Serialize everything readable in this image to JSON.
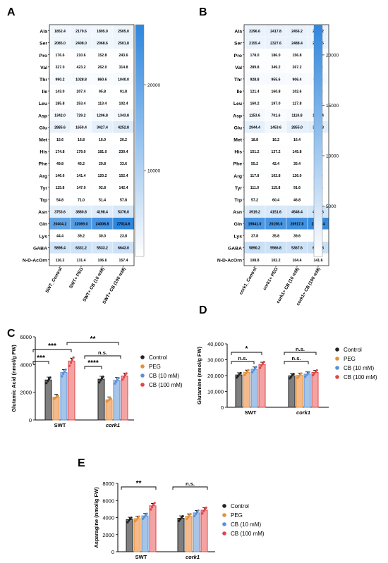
{
  "panels": [
    "A",
    "B",
    "C",
    "D",
    "E"
  ],
  "chart_data": [
    {
      "id": "A",
      "type": "heatmap",
      "rows": [
        "Ala",
        "Ser",
        "Pro",
        "Val",
        "Thr",
        "Ile",
        "Leu",
        "Asp",
        "Glu",
        "Met",
        "His",
        "Phe",
        "Arg",
        "Tyr",
        "Trp",
        "Asn",
        "Gln",
        "Lys",
        "GABA",
        "N-D-AcOrn"
      ],
      "columns": [
        "SWT_Control",
        "SWT+ PEG",
        "SWT+ CB (10 mM)",
        "SWT+ CB (100 mM)"
      ],
      "values": [
        [
          1852.4,
          2179.6,
          1895.0,
          2505.0
        ],
        [
          2085.0,
          2408.0,
          2068.6,
          2501.8
        ],
        [
          176.6,
          210.6,
          152.8,
          243.6
        ],
        [
          327.0,
          423.2,
          262.0,
          314.8
        ],
        [
          990.2,
          1028.8,
          860.6,
          1040.0
        ],
        [
          143.0,
          207.4,
          95.8,
          91.8
        ],
        [
          185.8,
          253.4,
          113.4,
          102.4
        ],
        [
          1342.0,
          729.2,
          1206.8,
          1343.8
        ],
        [
          2885.6,
          1650.4,
          3427.4,
          4252.8
        ],
        [
          15.6,
          16.8,
          16.0,
          20.2
        ],
        [
          174.8,
          179.0,
          181.0,
          230.4
        ],
        [
          49.8,
          45.2,
          29.8,
          33.6
        ],
        [
          146.6,
          141.4,
          120.2,
          152.4
        ],
        [
          115.8,
          147.0,
          92.8,
          142.4
        ],
        [
          54.8,
          71.0,
          51.4,
          57.8
        ],
        [
          3753.6,
          3880.8,
          4198.4,
          5376.0
        ],
        [
          20404.2,
          22069.0,
          24008.8,
          27014.6
        ],
        [
          44.4,
          39.2,
          30.0,
          23.8
        ],
        [
          5898.4,
          6331.2,
          5533.2,
          6643.0
        ],
        [
          116.2,
          131.4,
          106.6,
          157.4
        ]
      ],
      "colorbar": {
        "min": 0,
        "max": 27014.6,
        "ticks": [
          10000,
          20000
        ]
      }
    },
    {
      "id": "B",
      "type": "heatmap",
      "rows": [
        "Ala",
        "Ser",
        "Pro",
        "Val",
        "Thr",
        "Ile",
        "Leu",
        "Asp",
        "Glu",
        "Met",
        "His",
        "Phe",
        "Arg",
        "Tyr",
        "Trp",
        "Asn",
        "Gln",
        "Lys",
        "GABA",
        "N-D-AcOrn"
      ],
      "columns": [
        "cork1_Control",
        "cork1+ PEG",
        "cork1+ CB (10 mM)",
        "cork1+ CB (100 mM)"
      ],
      "values": [
        [
          2296.6,
          2417.8,
          2456.2,
          2422.2
        ],
        [
          2155.4,
          2327.6,
          2488.4,
          2356.6
        ],
        [
          178.0,
          186.0,
          156.8,
          235.0
        ],
        [
          289.8,
          349.2,
          267.2,
          334.8
        ],
        [
          928.8,
          955.6,
          906.4,
          989.4
        ],
        [
          121.4,
          160.8,
          102.6,
          120.2
        ],
        [
          160.2,
          197.0,
          127.8,
          149.0
        ],
        [
          1153.6,
          701.6,
          1110.8,
          1084.4
        ],
        [
          2944.4,
          1453.6,
          2855.0,
          3165.8
        ],
        [
          18.8,
          16.2,
          16.4,
          18.8
        ],
        [
          151.2,
          137.2,
          145.8,
          170.8
        ],
        [
          55.2,
          42.4,
          35.4,
          41.4
        ],
        [
          117.8,
          102.8,
          126.0,
          122.6
        ],
        [
          111.0,
          115.8,
          91.6,
          143.6
        ],
        [
          57.2,
          60.4,
          46.8,
          51.2
        ],
        [
          3919.2,
          4151.6,
          4546.4,
          4862.6
        ],
        [
          19841.0,
          20156.0,
          20917.8,
          21988.4
        ],
        [
          37.8,
          35.8,
          39.6,
          30.8
        ],
        [
          5890.2,
          5566.8,
          5367.6,
          6087.8
        ],
        [
          108.8,
          102.2,
          104.4,
          141.6
        ]
      ],
      "colorbar": {
        "min": 0,
        "max": 23000,
        "ticks": [
          5000,
          10000,
          15000,
          20000
        ]
      }
    },
    {
      "id": "C",
      "type": "bar",
      "ylabel": "Glutamic Acid (nmol/g FW)",
      "categories": [
        "SWT",
        "cork1"
      ],
      "series": [
        {
          "name": "Control",
          "values": [
            2886,
            2944
          ]
        },
        {
          "name": "PEG",
          "values": [
            1650,
            1454
          ]
        },
        {
          "name": "CB (10 mM)",
          "values": [
            3427,
            2855
          ]
        },
        {
          "name": "CB (100 mM)",
          "values": [
            4253,
            3166
          ]
        }
      ],
      "ylim": [
        0,
        6000
      ],
      "yticks": [
        0,
        2000,
        4000,
        6000
      ],
      "yticklabels": [
        "0",
        "2000",
        "4000",
        "6000"
      ],
      "significance": [
        [
          "***",
          "n.s.",
          "****",
          "n.s.",
          "***",
          "**"
        ]
      ]
    },
    {
      "id": "D",
      "type": "bar",
      "ylabel": "Glutamine (nmol/g FW)",
      "categories": [
        "SWT",
        "cork1"
      ],
      "series": [
        {
          "name": "Control",
          "values": [
            20404,
            19841
          ]
        },
        {
          "name": "PEG",
          "values": [
            22069,
            20156
          ]
        },
        {
          "name": "CB (10 mM)",
          "values": [
            24009,
            20918
          ]
        },
        {
          "name": "CB (100 mM)",
          "values": [
            27015,
            21988
          ]
        }
      ],
      "ylim": [
        0,
        40000
      ],
      "yticks": [
        0,
        10000,
        20000,
        30000,
        40000
      ],
      "yticklabels": [
        "0",
        "10,000",
        "20,000",
        "30,000",
        "40,000"
      ]
    },
    {
      "id": "E",
      "type": "bar",
      "ylabel": "Asparagine (nmol/g FW)",
      "categories": [
        "SWT",
        "cork1"
      ],
      "series": [
        {
          "name": "Control",
          "values": [
            3754,
            3919
          ]
        },
        {
          "name": "PEG",
          "values": [
            3881,
            4152
          ]
        },
        {
          "name": "CB (10 mM)",
          "values": [
            4198,
            4546
          ]
        },
        {
          "name": "CB (100 mM)",
          "values": [
            5376,
            4863
          ]
        }
      ],
      "ylim": [
        0,
        8000
      ],
      "yticks": [
        0,
        2000,
        4000,
        6000,
        8000
      ],
      "yticklabels": [
        "0",
        "2000",
        "4000",
        "6000",
        "8000"
      ]
    }
  ],
  "colors": {
    "Control": "#7f7f7f",
    "PEG": "#f5b98a",
    "CB (10 mM)": "#a6c4e8",
    "CB (100 mM)": "#f4a3a3",
    "Control_edge": "#222222",
    "PEG_edge": "#e69138",
    "CB (10 mM)_edge": "#5b8fd6",
    "CB (100 mM)_edge": "#e0454a",
    "heat_low": "#ffffff",
    "heat_high": "#2e86de"
  }
}
